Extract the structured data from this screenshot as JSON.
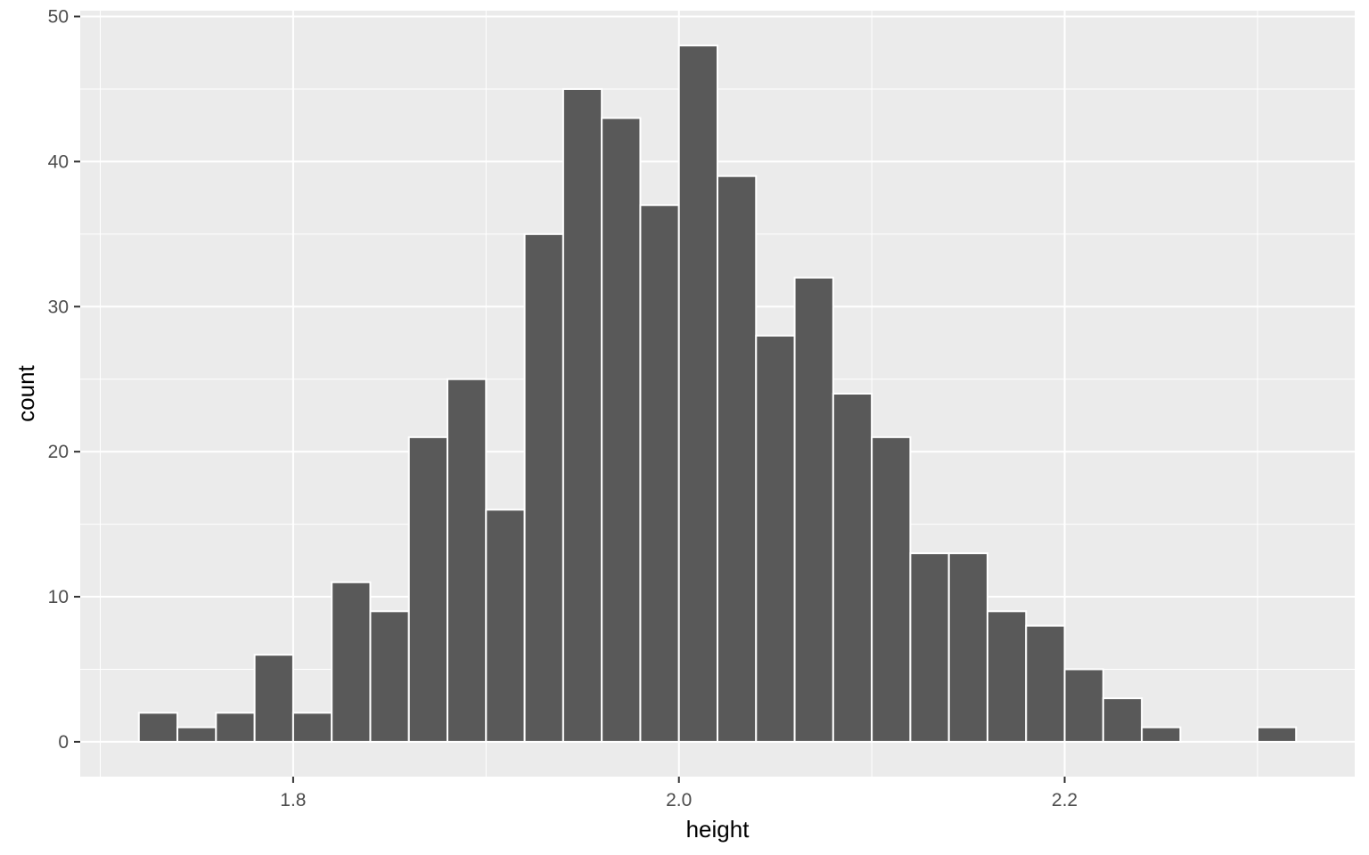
{
  "chart_data": {
    "type": "bar",
    "title": "",
    "xlabel": "height",
    "ylabel": "count",
    "colors": {
      "bar_fill": "#595959",
      "bar_outline": "#FFFFFF",
      "panel_background": "#EBEBEB",
      "grid": "#FFFFFF"
    },
    "grid": true,
    "bin_width": 0.02,
    "bins": [
      {
        "x_start": 1.72,
        "x_end": 1.74,
        "count": 2
      },
      {
        "x_start": 1.74,
        "x_end": 1.76,
        "count": 1
      },
      {
        "x_start": 1.76,
        "x_end": 1.78,
        "count": 2
      },
      {
        "x_start": 1.78,
        "x_end": 1.8,
        "count": 6
      },
      {
        "x_start": 1.8,
        "x_end": 1.82,
        "count": 2
      },
      {
        "x_start": 1.82,
        "x_end": 1.84,
        "count": 11
      },
      {
        "x_start": 1.84,
        "x_end": 1.86,
        "count": 9
      },
      {
        "x_start": 1.86,
        "x_end": 1.88,
        "count": 21
      },
      {
        "x_start": 1.88,
        "x_end": 1.9,
        "count": 25
      },
      {
        "x_start": 1.9,
        "x_end": 1.92,
        "count": 16
      },
      {
        "x_start": 1.92,
        "x_end": 1.94,
        "count": 35
      },
      {
        "x_start": 1.94,
        "x_end": 1.96,
        "count": 45
      },
      {
        "x_start": 1.96,
        "x_end": 1.98,
        "count": 43
      },
      {
        "x_start": 1.98,
        "x_end": 2.0,
        "count": 37
      },
      {
        "x_start": 2.0,
        "x_end": 2.02,
        "count": 48
      },
      {
        "x_start": 2.02,
        "x_end": 2.04,
        "count": 39
      },
      {
        "x_start": 2.04,
        "x_end": 2.06,
        "count": 28
      },
      {
        "x_start": 2.06,
        "x_end": 2.08,
        "count": 32
      },
      {
        "x_start": 2.08,
        "x_end": 2.1,
        "count": 24
      },
      {
        "x_start": 2.1,
        "x_end": 2.12,
        "count": 21
      },
      {
        "x_start": 2.12,
        "x_end": 2.14,
        "count": 13
      },
      {
        "x_start": 2.14,
        "x_end": 2.16,
        "count": 13
      },
      {
        "x_start": 2.16,
        "x_end": 2.18,
        "count": 9
      },
      {
        "x_start": 2.18,
        "x_end": 2.2,
        "count": 8
      },
      {
        "x_start": 2.2,
        "x_end": 2.22,
        "count": 5
      },
      {
        "x_start": 2.22,
        "x_end": 2.24,
        "count": 3
      },
      {
        "x_start": 2.24,
        "x_end": 2.26,
        "count": 1
      },
      {
        "x_start": 2.26,
        "x_end": 2.28,
        "count": 0
      },
      {
        "x_start": 2.28,
        "x_end": 2.3,
        "count": 0
      },
      {
        "x_start": 2.3,
        "x_end": 2.32,
        "count": 1
      }
    ],
    "x_major_ticks": [
      1.8,
      2.0,
      2.2
    ],
    "x_tick_labels": [
      "1.8",
      "2.0",
      "2.2"
    ],
    "x_minor_ticks": [
      1.7,
      1.9,
      2.1,
      2.3
    ],
    "y_major_ticks": [
      0,
      10,
      20,
      30,
      40,
      50
    ],
    "y_tick_labels": [
      "0",
      "10",
      "20",
      "30",
      "40",
      "50"
    ],
    "y_minor_ticks": [
      5,
      15,
      25,
      35,
      45
    ],
    "xlim": [
      1.6896,
      2.3504
    ],
    "ylim": [
      -2.4,
      50.4
    ]
  }
}
